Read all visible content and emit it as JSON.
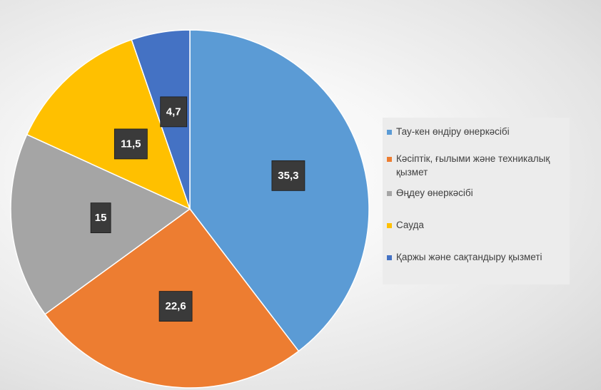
{
  "chart_data": {
    "type": "pie",
    "title": "",
    "categories": [
      "Тау-кен өндіру өнеркәсібі",
      "Кәсіптік, ғылыми және техникалық қызмет",
      " Өңдеу өнеркәсібі",
      "Сауда",
      "Қаржы және сақтандыру қызметі"
    ],
    "values": [
      35.3,
      22.6,
      15,
      11.5,
      4.7
    ],
    "value_labels": [
      "35,3",
      "22,6",
      "15",
      "11,5",
      "4,7"
    ],
    "colors": [
      "#5B9BD5",
      "#ED7D31",
      "#A5A5A5",
      "#FFC000",
      "#4472C4"
    ],
    "legend_position": "right"
  }
}
